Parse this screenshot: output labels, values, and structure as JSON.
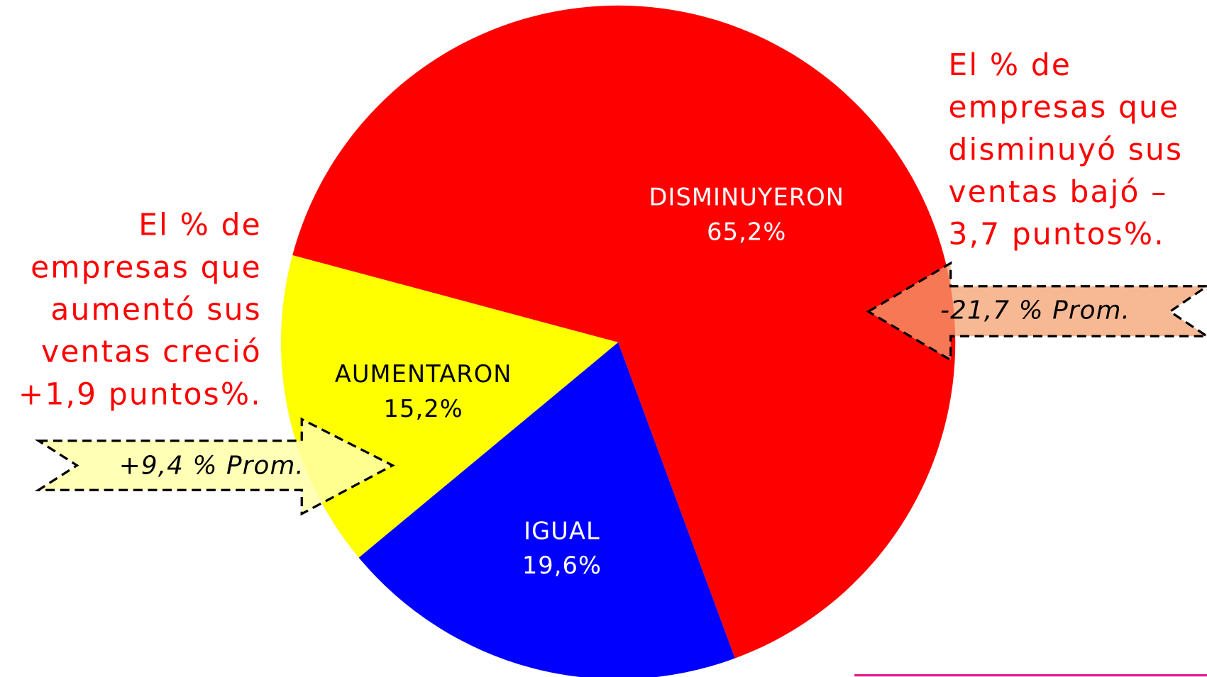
{
  "chart_data": {
    "type": "pie",
    "categories": [
      "DISMINUYERON",
      "IGUAL",
      "AUMENTARON"
    ],
    "values": [
      65.2,
      19.6,
      15.2
    ],
    "value_labels": [
      "65,2%",
      "19,6%",
      "15,2%"
    ],
    "colors": [
      "#ff0000",
      "#0000ff",
      "#ffff00"
    ],
    "annotations": [
      {
        "lines": [
          "El % de",
          "empresas que",
          "aumentó sus",
          "ventas creció",
          "+1,9 puntos%."
        ],
        "arrow": "+9,4 % Prom."
      },
      {
        "lines": [
          "El % de",
          "empresas que",
          "disminuyó sus",
          "ventas bajó –",
          "3,7 puntos%."
        ],
        "arrow": "-21,7 % Prom."
      }
    ]
  }
}
